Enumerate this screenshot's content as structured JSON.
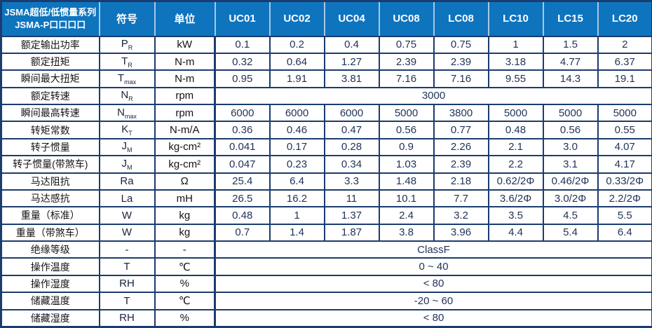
{
  "table": {
    "header": {
      "series_line1": "JSMA超低/低惯量系列",
      "series_line2": "JSMA-P口口口口",
      "symbol_label": "符号",
      "unit_label": "单位",
      "models": [
        "UC01",
        "UC02",
        "UC04",
        "UC08",
        "LC08",
        "LC10",
        "LC15",
        "LC20"
      ]
    },
    "rows": [
      {
        "label": "额定输出功率",
        "symbol": "P",
        "symbol_sub": "R",
        "unit": "kW",
        "values": [
          "0.1",
          "0.2",
          "0.4",
          "0.75",
          "0.75",
          "1",
          "1.5",
          "2"
        ]
      },
      {
        "label": "额定扭矩",
        "symbol": "T",
        "symbol_sub": "R",
        "unit": "N-m",
        "values": [
          "0.32",
          "0.64",
          "1.27",
          "2.39",
          "2.39",
          "3.18",
          "4.77",
          "6.37"
        ]
      },
      {
        "label": "瞬间最大扭矩",
        "symbol": "T",
        "symbol_sub": "max",
        "unit": "N-m",
        "values": [
          "0.95",
          "1.91",
          "3.81",
          "7.16",
          "7.16",
          "9.55",
          "14.3",
          "19.1"
        ]
      },
      {
        "label": "额定转速",
        "symbol": "N",
        "symbol_sub": "R",
        "unit": "rpm",
        "span_value": "3000"
      },
      {
        "label": "瞬间最高转速",
        "symbol": "N",
        "symbol_sub": "max",
        "unit": "rpm",
        "values": [
          "6000",
          "6000",
          "6000",
          "5000",
          "3800",
          "5000",
          "5000",
          "5000"
        ]
      },
      {
        "label": "转矩常数",
        "symbol": "K",
        "symbol_sub": "T",
        "unit": "N-m/A",
        "values": [
          "0.36",
          "0.46",
          "0.47",
          "0.56",
          "0.77",
          "0.48",
          "0.56",
          "0.55"
        ]
      },
      {
        "label": "转子惯量",
        "symbol": "J",
        "symbol_sub": "M",
        "unit": "kg-cm²",
        "values": [
          "0.041",
          "0.17",
          "0.28",
          "0.9",
          "2.26",
          "2.1",
          "3.0",
          "4.07"
        ]
      },
      {
        "label": "转子惯量(带煞车)",
        "symbol": "J",
        "symbol_sub": "M",
        "unit": "kg-cm²",
        "values": [
          "0.047",
          "0.23",
          "0.34",
          "1.03",
          "2.39",
          "2.2",
          "3.1",
          "4.17"
        ]
      },
      {
        "label": "马达阻抗",
        "symbol": "Ra",
        "symbol_sub": "",
        "unit": "Ω",
        "values": [
          "25.4",
          "6.4",
          "3.3",
          "1.48",
          "2.18",
          "0.62/2Φ",
          "0.46/2Φ",
          "0.33/2Φ"
        ]
      },
      {
        "label": "马达感抗",
        "symbol": "La",
        "symbol_sub": "",
        "unit": "mH",
        "values": [
          "26.5",
          "16.2",
          "11",
          "10.1",
          "7.7",
          "3.6/2Φ",
          "3.0/2Φ",
          "2.2/2Φ"
        ]
      },
      {
        "label": "重量（标准）",
        "symbol": "W",
        "symbol_sub": "",
        "unit": "kg",
        "values": [
          "0.48",
          "1",
          "1.37",
          "2.4",
          "3.2",
          "3.5",
          "4.5",
          "5.5"
        ]
      },
      {
        "label": "重量（带煞车）",
        "symbol": "W",
        "symbol_sub": "",
        "unit": "kg",
        "values": [
          "0.7",
          "1.4",
          "1.87",
          "3.8",
          "3.96",
          "4.4",
          "5.4",
          "6.4"
        ]
      },
      {
        "label": "绝缘等级",
        "symbol": "-",
        "symbol_sub": "",
        "unit": "-",
        "span_value": "ClassF"
      },
      {
        "label": "操作温度",
        "symbol": "T",
        "symbol_sub": "",
        "unit": "℃",
        "span_value": "0 ~ 40"
      },
      {
        "label": "操作湿度",
        "symbol": "RH",
        "symbol_sub": "",
        "unit": "%",
        "span_value": "< 80"
      },
      {
        "label": "储藏温度",
        "symbol": "T",
        "symbol_sub": "",
        "unit": "℃",
        "span_value": "-20 ~ 60"
      },
      {
        "label": "储藏湿度",
        "symbol": "RH",
        "symbol_sub": "",
        "unit": "%",
        "span_value": "< 80"
      }
    ]
  },
  "colors": {
    "header_bg": "#0e74be",
    "header_text": "#ffffff",
    "header_divider": "#a9c7e5",
    "border": "#1b3c6e",
    "label_text": "#141414",
    "value_text": "#1f3257"
  }
}
